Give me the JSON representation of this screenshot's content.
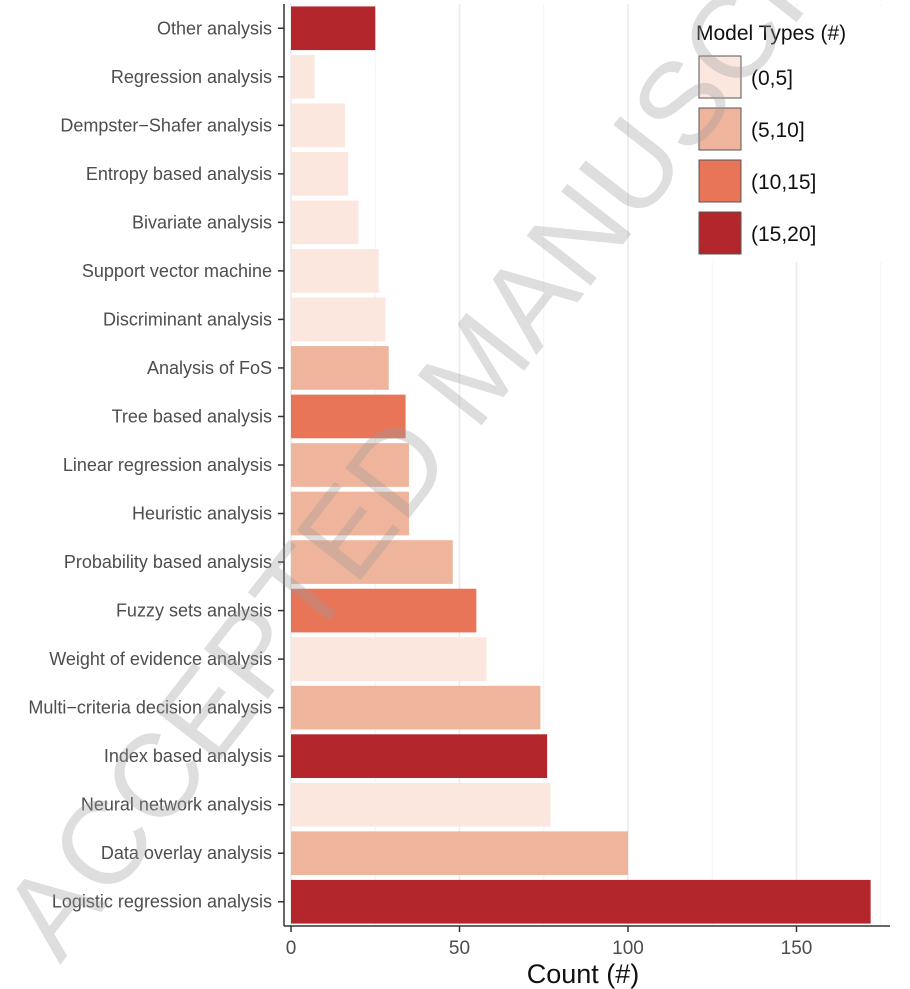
{
  "chart_data": {
    "type": "bar",
    "orientation": "horizontal",
    "categories": [
      "Other analysis",
      "Regression analysis",
      "Dempster−Shafer analysis",
      "Entropy based analysis",
      "Bivariate analysis",
      "Support vector machine",
      "Discriminant analysis",
      "Analysis of FoS",
      "Tree based analysis",
      "Linear regression analysis",
      "Heuristic analysis",
      "Probability based analysis",
      "Fuzzy sets analysis",
      "Weight of evidence analysis",
      "Multi−criteria decision analysis",
      "Index based analysis",
      "Neural network analysis",
      "Data overlay analysis",
      "Logistic regression analysis"
    ],
    "values": [
      25,
      7,
      16,
      17,
      20,
      26,
      28,
      29,
      34,
      35,
      35,
      48,
      55,
      58,
      74,
      76,
      77,
      100,
      172
    ],
    "groups": [
      "(15,20]",
      "(0,5]",
      "(0,5]",
      "(0,5]",
      "(0,5]",
      "(0,5]",
      "(0,5]",
      "(5,10]",
      "(10,15]",
      "(5,10]",
      "(5,10]",
      "(5,10]",
      "(10,15]",
      "(0,5]",
      "(5,10]",
      "(15,20]",
      "(0,5]",
      "(5,10]",
      "(15,20]"
    ],
    "xlabel": "Count (#)",
    "ylabel": "",
    "xlim": [
      0,
      178
    ],
    "xticks": [
      0,
      50,
      100,
      150
    ],
    "grid": true,
    "legend": {
      "title": "Model Types (#)",
      "placement": "top-right",
      "entries": [
        {
          "label": "(0,5]",
          "color": "#fbe7de"
        },
        {
          "label": "(5,10]",
          "color": "#efb49c"
        },
        {
          "label": "(10,15]",
          "color": "#e87558"
        },
        {
          "label": "(15,20]",
          "color": "#b3262c"
        }
      ]
    }
  },
  "watermark": "ACCEPTED MANUSCRIPT"
}
